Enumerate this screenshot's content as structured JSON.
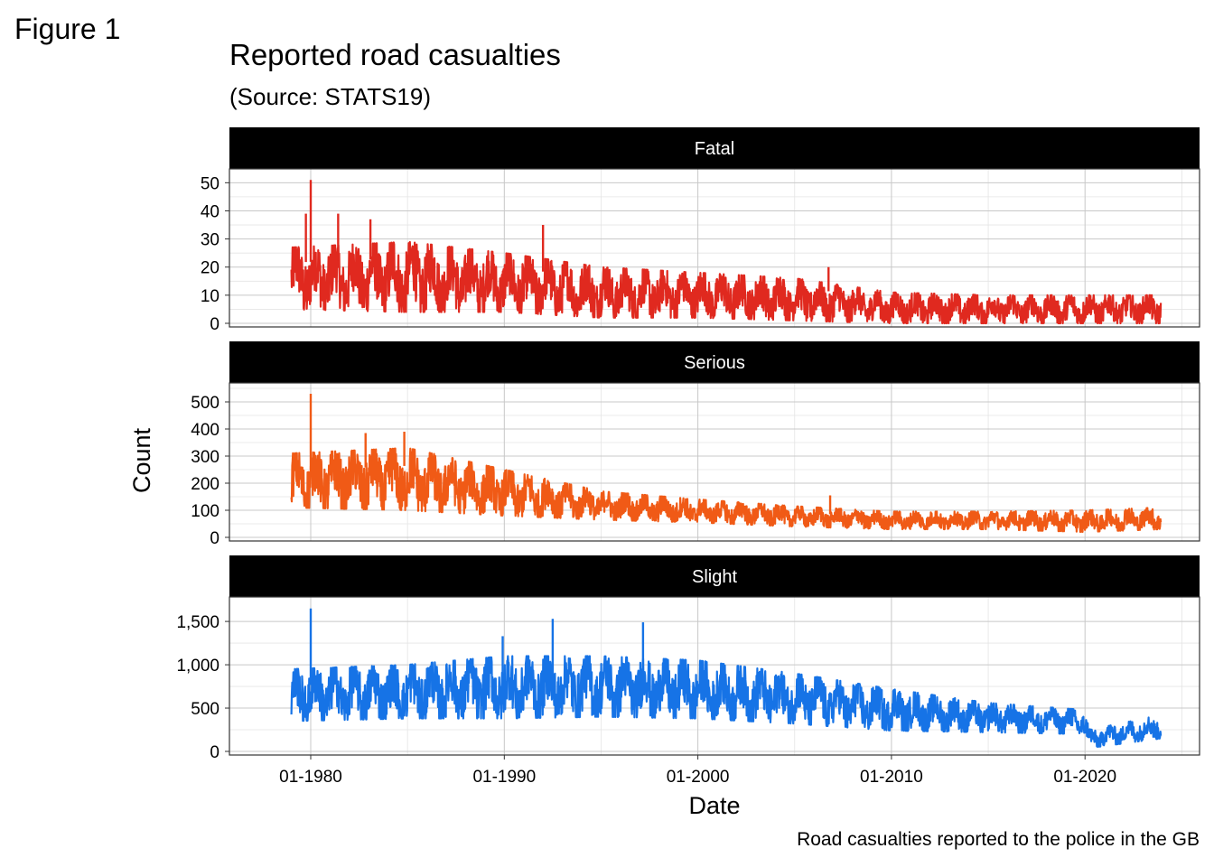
{
  "figure_label": "Figure 1",
  "chart_data": {
    "type": "line",
    "title": "Reported road casualties",
    "subtitle": "(Source: STATS19)",
    "caption": "Road casualties reported to the police in the GB",
    "xlabel": "Date",
    "ylabel": "Count",
    "x_range": [
      "1979-01",
      "2023-12"
    ],
    "x_ticks": [
      "01-1980",
      "01-1990",
      "01-2000",
      "01-2010",
      "01-2020"
    ],
    "grid": true,
    "facet_labels_style": "white text on black strip",
    "panels": [
      {
        "name": "Fatal",
        "color": "#e0291f",
        "ylim": [
          0,
          53
        ],
        "y_ticks": [
          "0",
          "10",
          "20",
          "30",
          "40",
          "50"
        ],
        "y_tick_values": [
          0,
          10,
          20,
          30,
          40,
          50
        ],
        "approx_trend": [
          {
            "x": "1979-01",
            "low": 5,
            "high": 27
          },
          {
            "x": "1985-01",
            "low": 4,
            "high": 29
          },
          {
            "x": "1990-01",
            "low": 4,
            "high": 25
          },
          {
            "x": "1995-01",
            "low": 2,
            "high": 20
          },
          {
            "x": "2000-01",
            "low": 2,
            "high": 18
          },
          {
            "x": "2005-01",
            "low": 1,
            "high": 16
          },
          {
            "x": "2010-01",
            "low": 0,
            "high": 11
          },
          {
            "x": "2015-01",
            "low": 0,
            "high": 10
          },
          {
            "x": "2020-01",
            "low": 0,
            "high": 10
          },
          {
            "x": "2023-12",
            "low": 0,
            "high": 10
          }
        ],
        "spikes": [
          {
            "x": "1980-01",
            "y": 51
          },
          {
            "x": "1979-10",
            "y": 39
          },
          {
            "x": "1981-06",
            "y": 39
          },
          {
            "x": "1983-02",
            "y": 37
          },
          {
            "x": "1992-01",
            "y": 35
          },
          {
            "x": "2006-10",
            "y": 20
          }
        ]
      },
      {
        "name": "Serious",
        "color": "#f05a16",
        "ylim": [
          0,
          550
        ],
        "y_ticks": [
          "0",
          "100",
          "200",
          "300",
          "400",
          "500"
        ],
        "y_tick_values": [
          0,
          100,
          200,
          300,
          400,
          500
        ],
        "approx_trend": [
          {
            "x": "1979-01",
            "low": 110,
            "high": 310
          },
          {
            "x": "1985-01",
            "low": 100,
            "high": 330
          },
          {
            "x": "1990-01",
            "low": 80,
            "high": 250
          },
          {
            "x": "1995-01",
            "low": 65,
            "high": 170
          },
          {
            "x": "2000-01",
            "low": 55,
            "high": 140
          },
          {
            "x": "2005-01",
            "low": 40,
            "high": 115
          },
          {
            "x": "2010-01",
            "low": 30,
            "high": 95
          },
          {
            "x": "2015-01",
            "low": 30,
            "high": 95
          },
          {
            "x": "2020-01",
            "low": 20,
            "high": 100
          },
          {
            "x": "2023-12",
            "low": 30,
            "high": 110
          }
        ],
        "spikes": [
          {
            "x": "1980-01",
            "y": 530
          },
          {
            "x": "1984-11",
            "y": 390
          },
          {
            "x": "1982-11",
            "y": 385
          },
          {
            "x": "2006-11",
            "y": 155
          }
        ]
      },
      {
        "name": "Slight",
        "color": "#1673e6",
        "ylim": [
          0,
          1720
        ],
        "y_ticks": [
          "0",
          "500",
          "1,000",
          "1,500"
        ],
        "y_tick_values": [
          0,
          500,
          1000,
          1500
        ],
        "approx_trend": [
          {
            "x": "1979-01",
            "low": 350,
            "high": 950
          },
          {
            "x": "1985-01",
            "low": 380,
            "high": 1000
          },
          {
            "x": "1990-01",
            "low": 380,
            "high": 1100
          },
          {
            "x": "1995-01",
            "low": 400,
            "high": 1100
          },
          {
            "x": "2000-01",
            "low": 380,
            "high": 1050
          },
          {
            "x": "2005-01",
            "low": 320,
            "high": 900
          },
          {
            "x": "2010-01",
            "low": 240,
            "high": 720
          },
          {
            "x": "2015-01",
            "low": 220,
            "high": 560
          },
          {
            "x": "2019-12",
            "low": 200,
            "high": 480
          },
          {
            "x": "2020-04",
            "low": 40,
            "high": 250
          },
          {
            "x": "2023-12",
            "low": 150,
            "high": 420
          }
        ],
        "spikes": [
          {
            "x": "1980-01",
            "y": 1650
          },
          {
            "x": "1992-07",
            "y": 1530
          },
          {
            "x": "1997-03",
            "y": 1490
          },
          {
            "x": "1989-12",
            "y": 1330
          }
        ]
      }
    ]
  }
}
